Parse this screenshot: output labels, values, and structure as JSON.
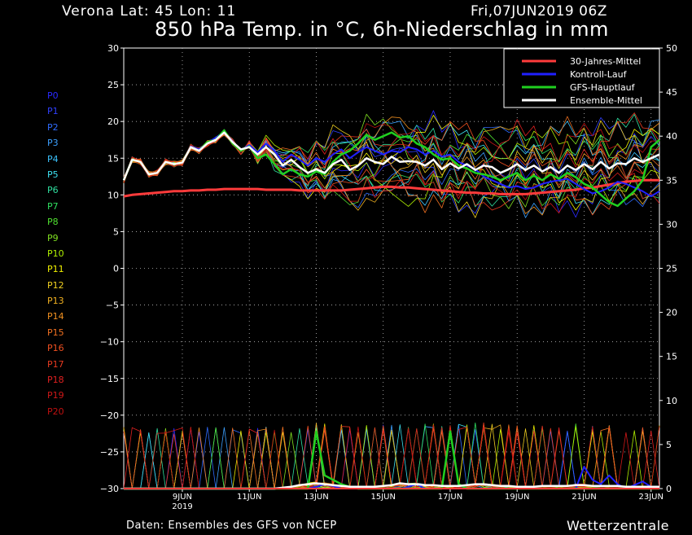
{
  "header": {
    "location": "Verona   Lat: 45 Lon: 11",
    "run": "Fri,07JUN2019 06Z",
    "title": "850 hPa Temp. in °C, 6h-Niederschlag in mm"
  },
  "footer": {
    "source": "Daten: Ensembles des GFS von NCEP",
    "brand": "Wetterzentrale"
  },
  "members": [
    {
      "label": "P0",
      "color": "#2a2aff"
    },
    {
      "label": "P1",
      "color": "#3040ff"
    },
    {
      "label": "P2",
      "color": "#2f6cff"
    },
    {
      "label": "P3",
      "color": "#3ca0ff"
    },
    {
      "label": "P4",
      "color": "#3cc4ff"
    },
    {
      "label": "P5",
      "color": "#3de0f0"
    },
    {
      "label": "P6",
      "color": "#30e0a0"
    },
    {
      "label": "P7",
      "color": "#30e060"
    },
    {
      "label": "P8",
      "color": "#50e030"
    },
    {
      "label": "P9",
      "color": "#80e020"
    },
    {
      "label": "P10",
      "color": "#b0f000"
    },
    {
      "label": "P11",
      "color": "#f0f000"
    },
    {
      "label": "P12",
      "color": "#f0d020"
    },
    {
      "label": "P13",
      "color": "#f0b020"
    },
    {
      "label": "P14",
      "color": "#f09020"
    },
    {
      "label": "P15",
      "color": "#f07020"
    },
    {
      "label": "P16",
      "color": "#f05020"
    },
    {
      "label": "P17",
      "color": "#e83a20"
    },
    {
      "label": "P18",
      "color": "#e02020"
    },
    {
      "label": "P19",
      "color": "#d01818"
    },
    {
      "label": "P20",
      "color": "#c01010"
    }
  ],
  "chart_data": {
    "type": "line",
    "x_start": "2019-06-07T06Z",
    "x_step_hours": 6,
    "x_ticks": [
      {
        "label": "9JUN",
        "sublabel": "2019",
        "step": 7
      },
      {
        "label": "11JUN",
        "step": 15
      },
      {
        "label": "13JUN",
        "step": 23
      },
      {
        "label": "15JUN",
        "step": 31
      },
      {
        "label": "17JUN",
        "step": 39
      },
      {
        "label": "19JUN",
        "step": 47
      },
      {
        "label": "21JUN",
        "step": 55
      },
      {
        "label": "23JUN",
        "step": 63
      }
    ],
    "y_left": {
      "range": [
        -30,
        30
      ],
      "ticks": [
        "30",
        "25",
        "20",
        "15",
        "10",
        "5",
        "0",
        "−5",
        "−10",
        "−15",
        "−20",
        "−25",
        "−30"
      ]
    },
    "y_right": {
      "range": [
        0,
        50
      ],
      "ticks": [
        "50",
        "45",
        "40",
        "35",
        "30",
        "25",
        "20",
        "15",
        "10",
        "5",
        "0"
      ]
    },
    "grid": true,
    "legend_position": "top-right",
    "legend": [
      {
        "name": "30-Jahres-Mittel",
        "color": "#ff3b3b"
      },
      {
        "name": "Kontroll-Lauf",
        "color": "#2020ff"
      },
      {
        "name": "GFS-Hauptlauf",
        "color": "#20d020"
      },
      {
        "name": "Ensemble-Mittel",
        "color": "#ffffff"
      }
    ],
    "climatology": [
      9.8,
      10.0,
      10.1,
      10.2,
      10.3,
      10.4,
      10.5,
      10.5,
      10.6,
      10.6,
      10.7,
      10.7,
      10.8,
      10.8,
      10.8,
      10.8,
      10.8,
      10.7,
      10.7,
      10.7,
      10.7,
      10.6,
      10.6,
      10.6,
      10.6,
      10.6,
      10.6,
      10.7,
      10.8,
      10.9,
      11.0,
      11.1,
      11.1,
      11.0,
      11.0,
      10.9,
      10.8,
      10.7,
      10.6,
      10.5,
      10.4,
      10.3,
      10.3,
      10.2,
      10.2,
      10.1,
      10.1,
      10.1,
      10.1,
      10.2,
      10.3,
      10.4,
      10.5,
      10.6,
      10.7,
      10.9,
      11.0,
      11.2,
      11.4,
      11.6,
      11.8,
      11.9,
      12.0,
      12.0,
      12.0
    ],
    "ensemble_mean": [
      12.0,
      14.8,
      14.5,
      12.8,
      13.0,
      14.5,
      14.2,
      14.4,
      16.5,
      16.0,
      17.0,
      17.5,
      18.5,
      17.2,
      16.2,
      16.5,
      15.5,
      16.5,
      15.5,
      14.0,
      14.8,
      13.8,
      13.0,
      13.5,
      13.0,
      14.2,
      14.8,
      13.4,
      14.0,
      15.0,
      14.5,
      14.2,
      15.2,
      14.5,
      14.6,
      14.5,
      14.0,
      14.8,
      13.5,
      14.3,
      13.6,
      14.2,
      13.4,
      14.0,
      13.8,
      13.0,
      13.5,
      14.2,
      13.4,
      14.0,
      13.2,
      13.8,
      13.0,
      14.0,
      13.4,
      14.2,
      13.5,
      14.5,
      13.6,
      14.3,
      14.2,
      15.0,
      14.5,
      15.0,
      15.5
    ],
    "control_run": [
      12.0,
      14.8,
      14.5,
      12.8,
      13.0,
      14.5,
      14.2,
      14.4,
      16.6,
      16.2,
      17.1,
      17.8,
      18.6,
      17.3,
      16.0,
      16.8,
      15.8,
      17.0,
      16.0,
      14.5,
      15.5,
      14.8,
      14.0,
      15.0,
      14.5,
      15.5,
      16.2,
      15.0,
      15.8,
      16.5,
      16.0,
      15.5,
      16.0,
      15.8,
      16.5,
      16.2,
      15.5,
      16.0,
      15.2,
      15.5,
      14.5,
      14.0,
      13.5,
      12.5,
      12.0,
      11.5,
      11.0,
      11.2,
      10.8,
      11.0,
      11.5,
      11.8,
      12.0,
      12.2,
      11.5,
      10.8,
      10.2,
      10.5,
      11.0,
      11.8,
      11.5,
      11.0,
      10.5,
      9.8,
      10.5
    ],
    "gfs_main": [
      12.0,
      14.8,
      14.5,
      12.8,
      13.0,
      14.5,
      14.2,
      14.4,
      16.5,
      16.0,
      17.2,
      17.5,
      18.8,
      17.0,
      16.0,
      16.6,
      15.0,
      15.5,
      14.2,
      12.8,
      13.5,
      12.8,
      12.5,
      13.2,
      12.8,
      14.5,
      15.5,
      16.0,
      17.0,
      18.2,
      17.5,
      18.0,
      18.5,
      17.8,
      18.0,
      17.0,
      16.5,
      15.5,
      14.8,
      15.0,
      14.0,
      13.6,
      13.0,
      12.8,
      12.5,
      12.0,
      12.5,
      13.0,
      12.0,
      12.6,
      12.0,
      12.8,
      12.2,
      13.0,
      12.4,
      11.5,
      11.0,
      10.0,
      9.0,
      8.5,
      9.5,
      10.5,
      12.0,
      16.5,
      17.5
    ],
    "precip_units": "mm",
    "precip_control": [
      0,
      0,
      0,
      0,
      0,
      0,
      0,
      0,
      0,
      0,
      0,
      0,
      0,
      0,
      0,
      0,
      0,
      0,
      0,
      0,
      0,
      0,
      0,
      0.2,
      0.5,
      0.3,
      0,
      0,
      0,
      0,
      0,
      0,
      0,
      0,
      0.2,
      0.5,
      0,
      0,
      0,
      0,
      0,
      0,
      0,
      0,
      0,
      0,
      0,
      0,
      0,
      0,
      0,
      0,
      0,
      0,
      0,
      2.5,
      1.0,
      0.5,
      1.5,
      0.5,
      0,
      0.4,
      0.8,
      0.2,
      0
    ],
    "precip_gfs": [
      0,
      0,
      0,
      0,
      0,
      0,
      0,
      0,
      0,
      0,
      0,
      0,
      0,
      0,
      0,
      0,
      0,
      0,
      0,
      0,
      0,
      0,
      0,
      6.5,
      1.5,
      1.0,
      0.5,
      0.2,
      0,
      0,
      0,
      0,
      0,
      0,
      0,
      0,
      0,
      0,
      0,
      6.5,
      0.5,
      0,
      0,
      0,
      0,
      0,
      0,
      0,
      0,
      0,
      0,
      0,
      0,
      0,
      0,
      0,
      0,
      0,
      0,
      0,
      0,
      0,
      0,
      0,
      0
    ],
    "precip_mean": [
      0,
      0,
      0,
      0,
      0,
      0,
      0,
      0,
      0,
      0,
      0,
      0,
      0,
      0,
      0,
      0,
      0,
      0,
      0,
      0.1,
      0.2,
      0.4,
      0.5,
      0.6,
      0.5,
      0.4,
      0.3,
      0.2,
      0.2,
      0.2,
      0.2,
      0.3,
      0.4,
      0.6,
      0.5,
      0.5,
      0.4,
      0.4,
      0.3,
      0.3,
      0.3,
      0.4,
      0.5,
      0.5,
      0.4,
      0.3,
      0.3,
      0.2,
      0.2,
      0.2,
      0.3,
      0.3,
      0.3,
      0.3,
      0.4,
      0.4,
      0.3,
      0.3,
      0.3,
      0.3,
      0.2,
      0.2,
      0.2,
      0.2,
      0.2
    ],
    "precip_climatology": [
      0,
      0,
      0,
      0,
      0,
      0,
      0,
      0,
      0,
      0,
      0,
      0,
      0,
      0,
      0,
      0,
      0,
      0,
      0,
      0,
      0,
      0,
      0,
      0,
      0,
      0,
      0,
      0,
      0,
      0,
      0,
      0,
      0,
      0,
      0,
      0,
      0,
      0,
      0,
      0,
      0,
      0,
      0,
      0,
      0,
      0,
      0,
      0,
      0,
      0,
      0,
      0,
      0,
      0,
      0,
      0,
      0,
      0,
      0,
      0,
      0,
      0,
      0,
      0,
      0
    ]
  }
}
